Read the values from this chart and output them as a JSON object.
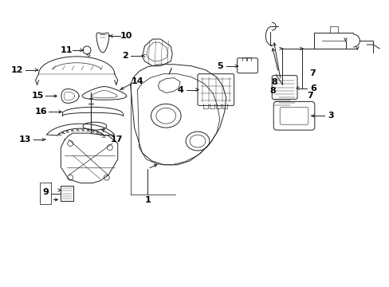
{
  "background_color": "#ffffff",
  "line_color": "#222222",
  "label_color": "#000000",
  "fig_width": 4.89,
  "fig_height": 3.6,
  "dpi": 100
}
